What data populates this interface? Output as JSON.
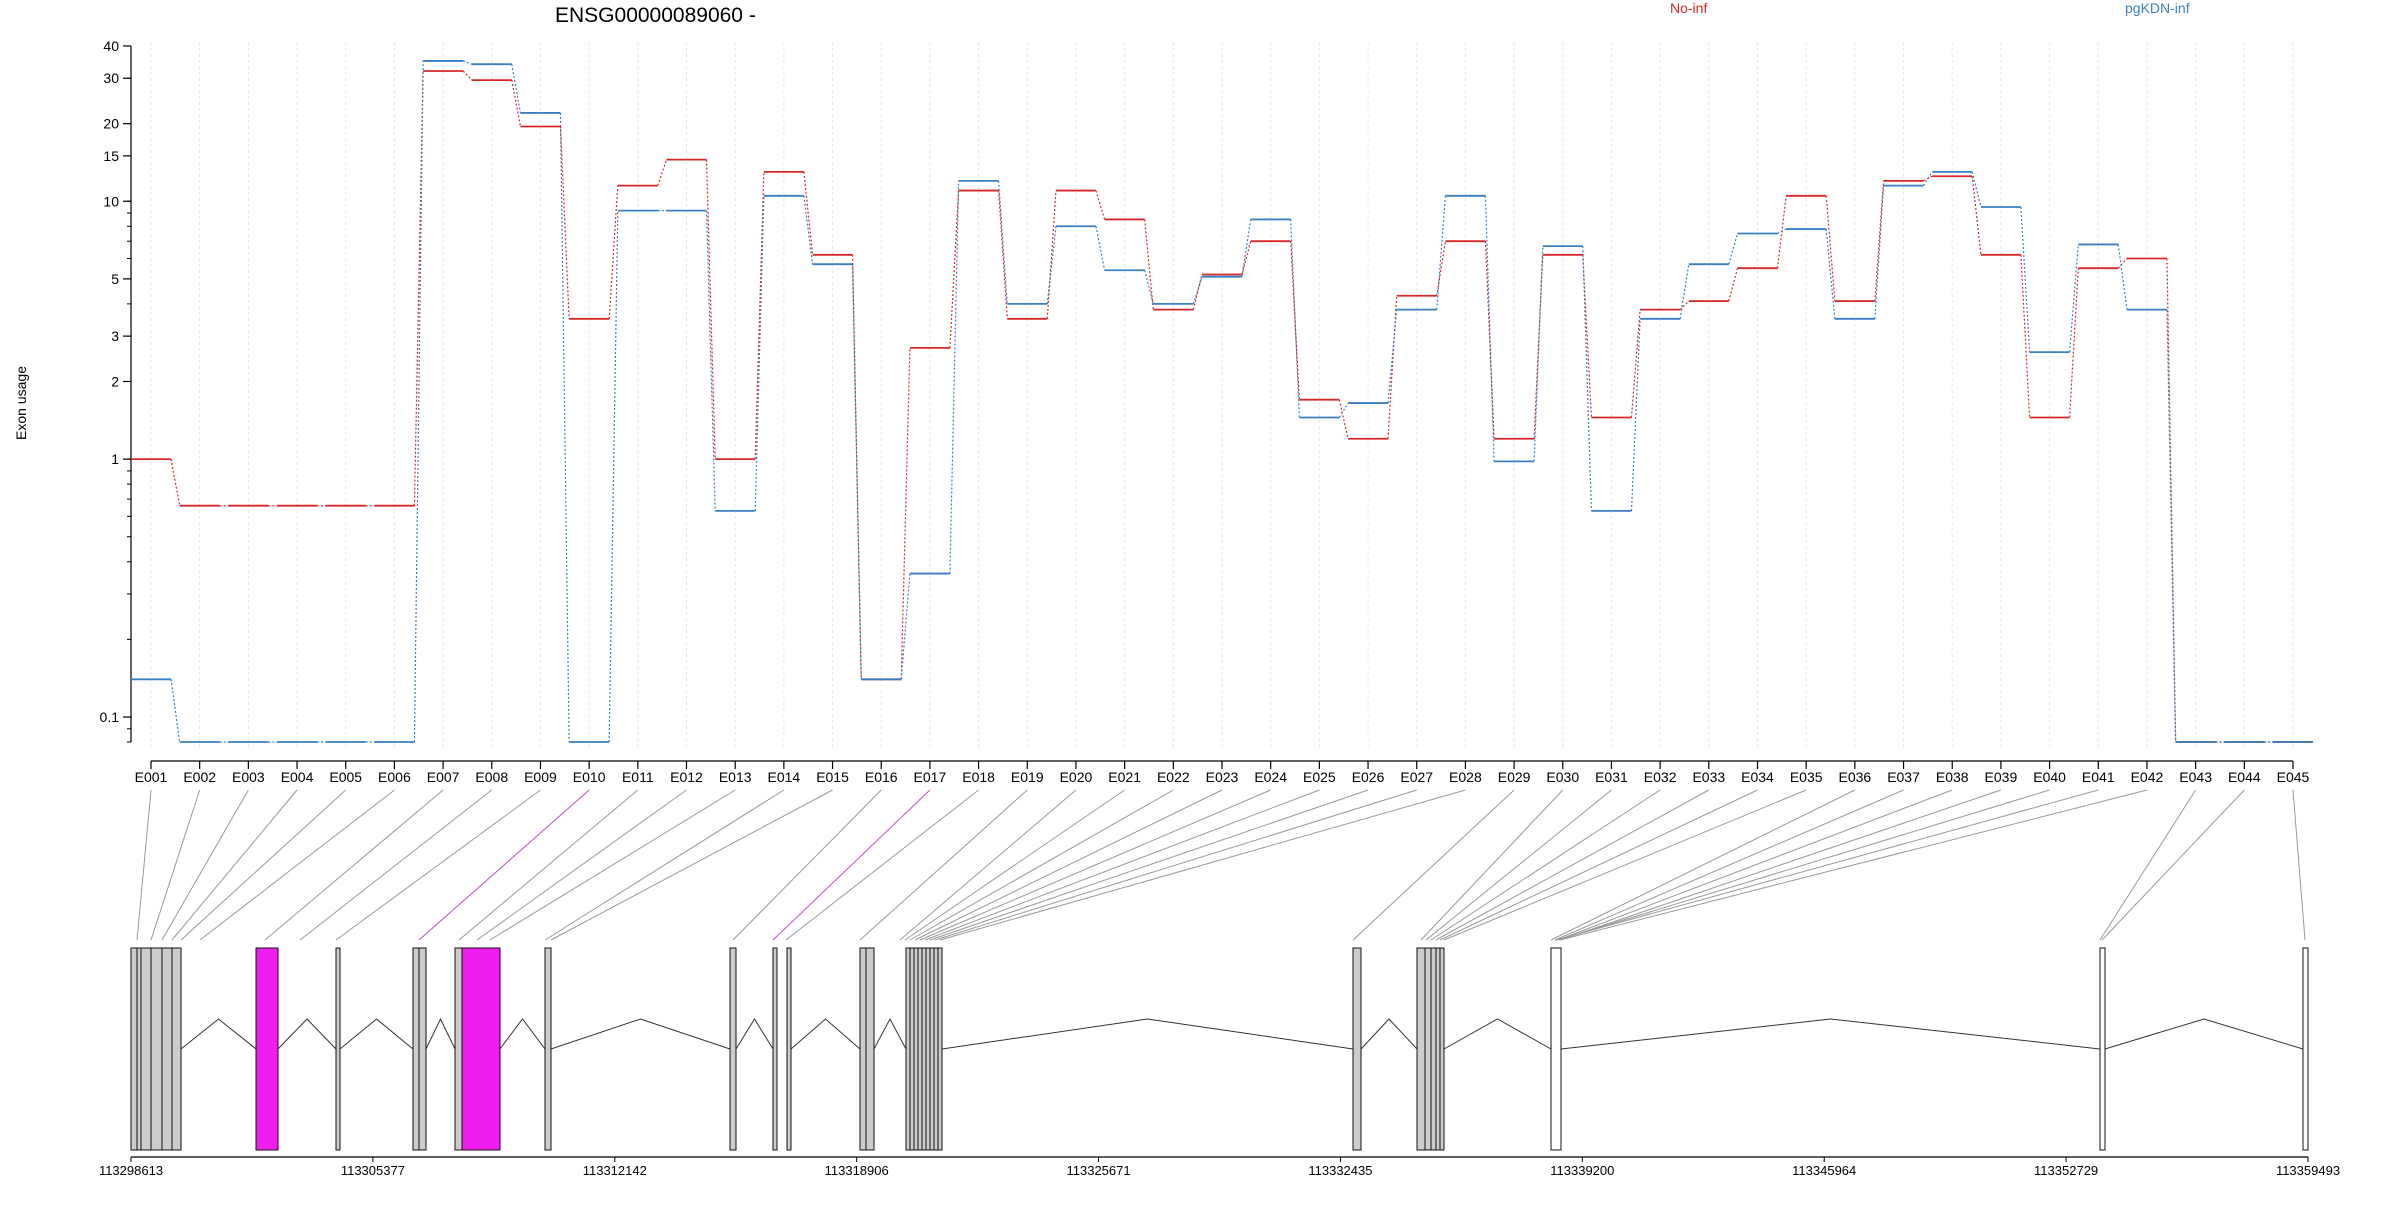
{
  "chart_data": {
    "type": "line",
    "title": "ENSG00000089060 -",
    "ylabel": "Exon usage",
    "xlabel": "",
    "y_scale": "log",
    "ylim": [
      0.08,
      40
    ],
    "yticks": [
      0.1,
      1,
      2,
      3,
      5,
      10,
      15,
      20,
      30,
      40
    ],
    "ytick_labels": [
      "0.1",
      "1",
      "2",
      "3",
      "5",
      "10",
      "15",
      "20",
      "30",
      "40"
    ],
    "grid": "vertical dashed, light grey",
    "legend_position": "top",
    "categories": [
      "E001",
      "E002",
      "E003",
      "E004",
      "E005",
      "E006",
      "E007",
      "E008",
      "E009",
      "E010",
      "E011",
      "E012",
      "E013",
      "E014",
      "E015",
      "E016",
      "E017",
      "E018",
      "E019",
      "E020",
      "E021",
      "E022",
      "E023",
      "E024",
      "E025",
      "E026",
      "E027",
      "E028",
      "E029",
      "E030",
      "E031",
      "E032",
      "E033",
      "E034",
      "E035",
      "E036",
      "E037",
      "E038",
      "E039",
      "E040",
      "E041",
      "E042",
      "E043",
      "E044",
      "E045"
    ],
    "series": [
      {
        "name": "No-inf",
        "color": "#d62728",
        "values": [
          1.0,
          0.66,
          0.66,
          0.66,
          0.66,
          0.66,
          32,
          29.5,
          19.5,
          3.5,
          11.5,
          14.5,
          1.0,
          13,
          6.2,
          0.14,
          2.7,
          11,
          3.5,
          11,
          8.5,
          3.8,
          5.2,
          7,
          1.7,
          1.2,
          4.3,
          7,
          1.2,
          6.2,
          1.45,
          3.8,
          4.1,
          5.5,
          10.5,
          4.1,
          12,
          12.5,
          6.2,
          1.45,
          5.5,
          6,
          0.08,
          0.08,
          0.08
        ]
      },
      {
        "name": "pgKDN-inf",
        "color": "#3a7fc1",
        "values": [
          0.14,
          0.08,
          0.08,
          0.08,
          0.08,
          0.08,
          35,
          34,
          22,
          0.08,
          9.2,
          9.2,
          0.63,
          10.5,
          5.7,
          0.14,
          0.36,
          12,
          4.0,
          8,
          5.4,
          4.0,
          5.1,
          8.5,
          1.45,
          1.65,
          3.8,
          10.5,
          0.98,
          6.7,
          0.63,
          3.5,
          5.7,
          7.5,
          7.8,
          3.5,
          11.5,
          13,
          9.5,
          2.6,
          6.8,
          3.8,
          0.08,
          0.08,
          0.08
        ]
      }
    ],
    "gene_coordinate_ticks": [
      "113298613",
      "113305377",
      "113312142",
      "113318906",
      "113325671",
      "113332435",
      "113339200",
      "113345964",
      "113352729",
      "113359493"
    ],
    "gene_model": {
      "exon_fill": "#cccccc",
      "highlight_fill": "#ee1eee",
      "highlighted_exons": [
        "E010",
        "E017"
      ],
      "unfilled_exons": [
        "E043",
        "E044",
        "E045"
      ]
    }
  }
}
